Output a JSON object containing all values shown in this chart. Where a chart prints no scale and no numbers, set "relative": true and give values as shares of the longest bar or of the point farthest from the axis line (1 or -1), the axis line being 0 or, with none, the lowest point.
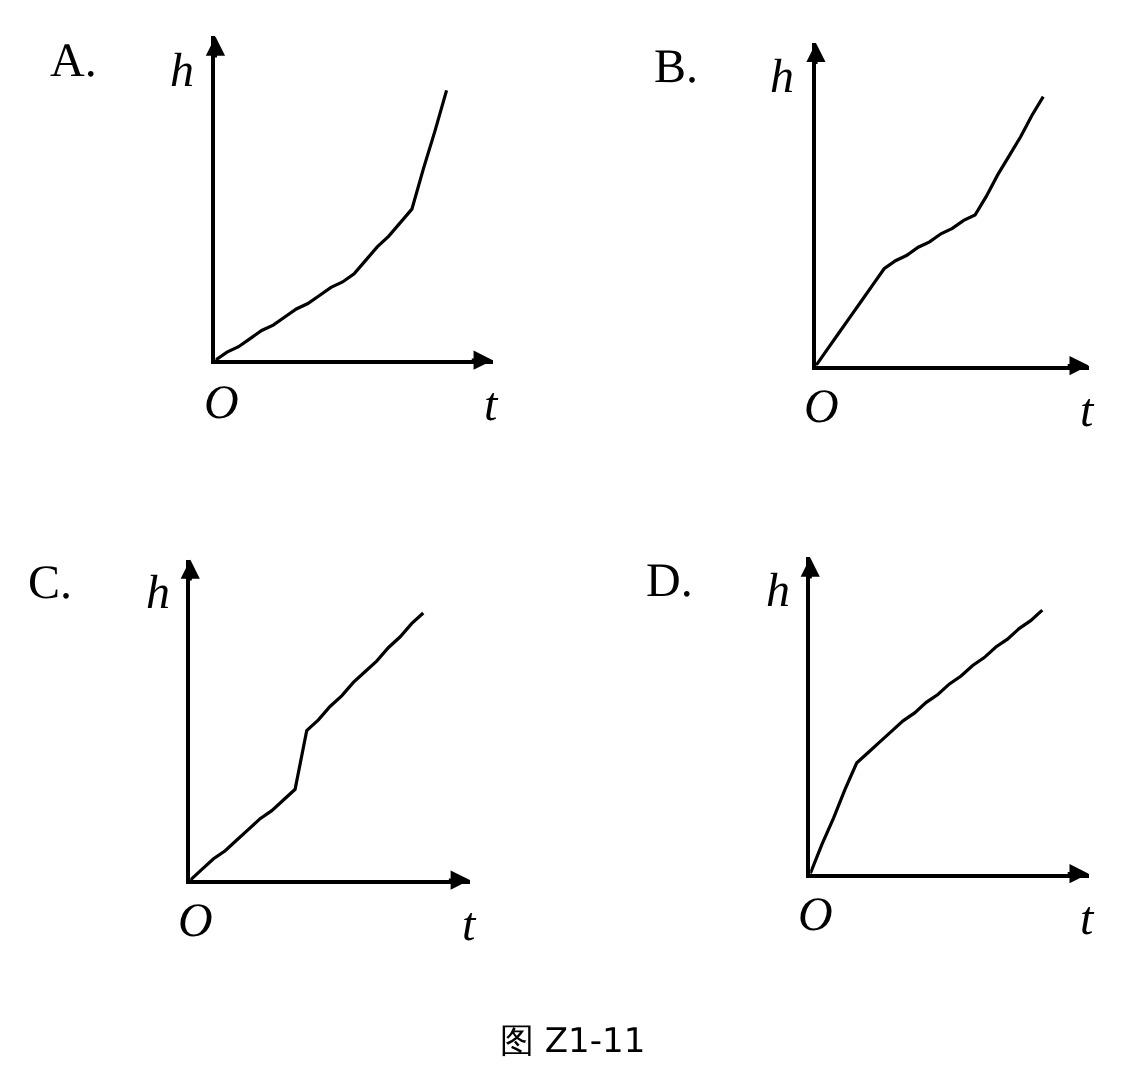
{
  "chart_data": [
    {
      "type": "line",
      "title": "A.",
      "xlabel": "t",
      "ylabel": "h",
      "relative": true,
      "categories": [
        null,
        null,
        null,
        null,
        null,
        null,
        null,
        null,
        null,
        null,
        null,
        null,
        null,
        null,
        null,
        null,
        null,
        null,
        null,
        null,
        null
      ],
      "series": [
        {
          "color": "#000000",
          "values": [
            0,
            0.03,
            0.05,
            0.08,
            0.11,
            0.13,
            0.16,
            0.19,
            0.21,
            0.24,
            0.27,
            0.29,
            0.32,
            0.37,
            0.42,
            0.46,
            0.51,
            0.56,
            0.71,
            0.85,
            1
          ]
        }
      ],
      "annotations": [
        "O"
      ]
    },
    {
      "type": "line",
      "title": "B.",
      "xlabel": "t",
      "ylabel": "h",
      "relative": true,
      "categories": [
        null,
        null,
        null,
        null,
        null,
        null,
        null,
        null,
        null,
        null,
        null,
        null,
        null,
        null,
        null,
        null,
        null,
        null,
        null,
        null,
        null
      ],
      "series": [
        {
          "color": "#000000",
          "values": [
            0,
            0.06,
            0.12,
            0.18,
            0.24,
            0.3,
            0.36,
            0.39,
            0.41,
            0.44,
            0.46,
            0.49,
            0.51,
            0.54,
            0.56,
            0.63,
            0.71,
            0.78,
            0.85,
            0.93,
            1
          ]
        }
      ],
      "annotations": [
        "O"
      ]
    },
    {
      "type": "line",
      "title": "C.",
      "xlabel": "t",
      "ylabel": "h",
      "relative": true,
      "categories": [
        null,
        null,
        null,
        null,
        null,
        null,
        null,
        null,
        null,
        null,
        null,
        null,
        null,
        null,
        null,
        null,
        null,
        null,
        null,
        null,
        null
      ],
      "series": [
        {
          "color": "#000000",
          "values": [
            0,
            0.04,
            0.08,
            0.11,
            0.15,
            0.19,
            0.23,
            0.26,
            0.3,
            0.34,
            0.56,
            0.6,
            0.65,
            0.69,
            0.74,
            0.78,
            0.82,
            0.87,
            0.91,
            0.96,
            1
          ]
        }
      ],
      "annotations": [
        "O"
      ]
    },
    {
      "type": "line",
      "title": "D.",
      "xlabel": "t",
      "ylabel": "h",
      "relative": true,
      "categories": [
        null,
        null,
        null,
        null,
        null,
        null,
        null,
        null,
        null,
        null,
        null,
        null,
        null,
        null,
        null,
        null,
        null,
        null,
        null,
        null,
        null
      ],
      "series": [
        {
          "color": "#000000",
          "values": [
            0,
            0.11,
            0.21,
            0.32,
            0.42,
            0.46,
            0.5,
            0.54,
            0.58,
            0.61,
            0.65,
            0.68,
            0.72,
            0.75,
            0.79,
            0.82,
            0.86,
            0.89,
            0.93,
            0.96,
            1
          ]
        }
      ],
      "annotations": [
        "O",
        "图 Z1-11"
      ]
    }
  ]
}
